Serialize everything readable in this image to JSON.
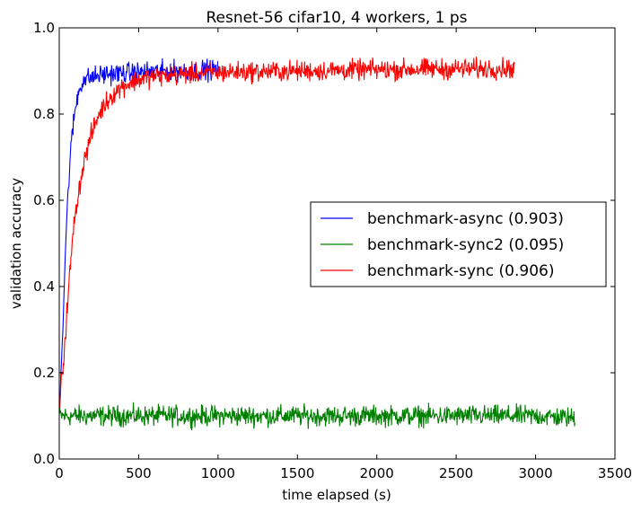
{
  "chart_data": {
    "type": "line",
    "title": "Resnet-56 cifar10, 4 workers, 1 ps",
    "xlabel": "time elapsed (s)",
    "ylabel": "validation accuracy",
    "xlim": [
      0,
      3500
    ],
    "ylim": [
      0.0,
      1.0
    ],
    "xticks": [
      0,
      500,
      1000,
      1500,
      2000,
      2500,
      3000,
      3500
    ],
    "yticks": [
      0.0,
      0.2,
      0.4,
      0.6,
      0.8,
      1.0
    ],
    "xtick_labels": [
      "0",
      "500",
      "1000",
      "1500",
      "2000",
      "2500",
      "3000",
      "3500"
    ],
    "ytick_labels": [
      "0.0",
      "0.2",
      "0.4",
      "0.6",
      "0.8",
      "1.0"
    ],
    "grid": false,
    "legend_position": "center-right",
    "series": [
      {
        "name": "benchmark-async (0.903)",
        "color": "#0000ff",
        "x": [
          0,
          10,
          25,
          40,
          60,
          80,
          100,
          120,
          150,
          200,
          250,
          300,
          400,
          500,
          600,
          700,
          800,
          900,
          1000
        ],
        "y": [
          0.12,
          0.2,
          0.33,
          0.5,
          0.65,
          0.75,
          0.81,
          0.85,
          0.88,
          0.885,
          0.89,
          0.893,
          0.895,
          0.897,
          0.899,
          0.9,
          0.9,
          0.902,
          0.903
        ],
        "noise": 0.018
      },
      {
        "name": "benchmark-sync2 (0.095)",
        "color": "#008000",
        "x": [
          0,
          500,
          1000,
          1500,
          2000,
          2500,
          3000,
          3250
        ],
        "y": [
          0.1,
          0.1,
          0.1,
          0.1,
          0.1,
          0.1,
          0.1,
          0.095
        ],
        "noise": 0.018
      },
      {
        "name": "benchmark-sync (0.906)",
        "color": "#ff0000",
        "x": [
          0,
          25,
          50,
          75,
          100,
          150,
          200,
          250,
          300,
          350,
          400,
          500,
          600,
          700,
          800,
          1000,
          1500,
          2000,
          2500,
          2870
        ],
        "y": [
          0.12,
          0.22,
          0.35,
          0.47,
          0.57,
          0.68,
          0.75,
          0.8,
          0.83,
          0.85,
          0.865,
          0.88,
          0.887,
          0.89,
          0.893,
          0.897,
          0.9,
          0.903,
          0.905,
          0.906
        ],
        "noise": 0.018
      }
    ]
  }
}
